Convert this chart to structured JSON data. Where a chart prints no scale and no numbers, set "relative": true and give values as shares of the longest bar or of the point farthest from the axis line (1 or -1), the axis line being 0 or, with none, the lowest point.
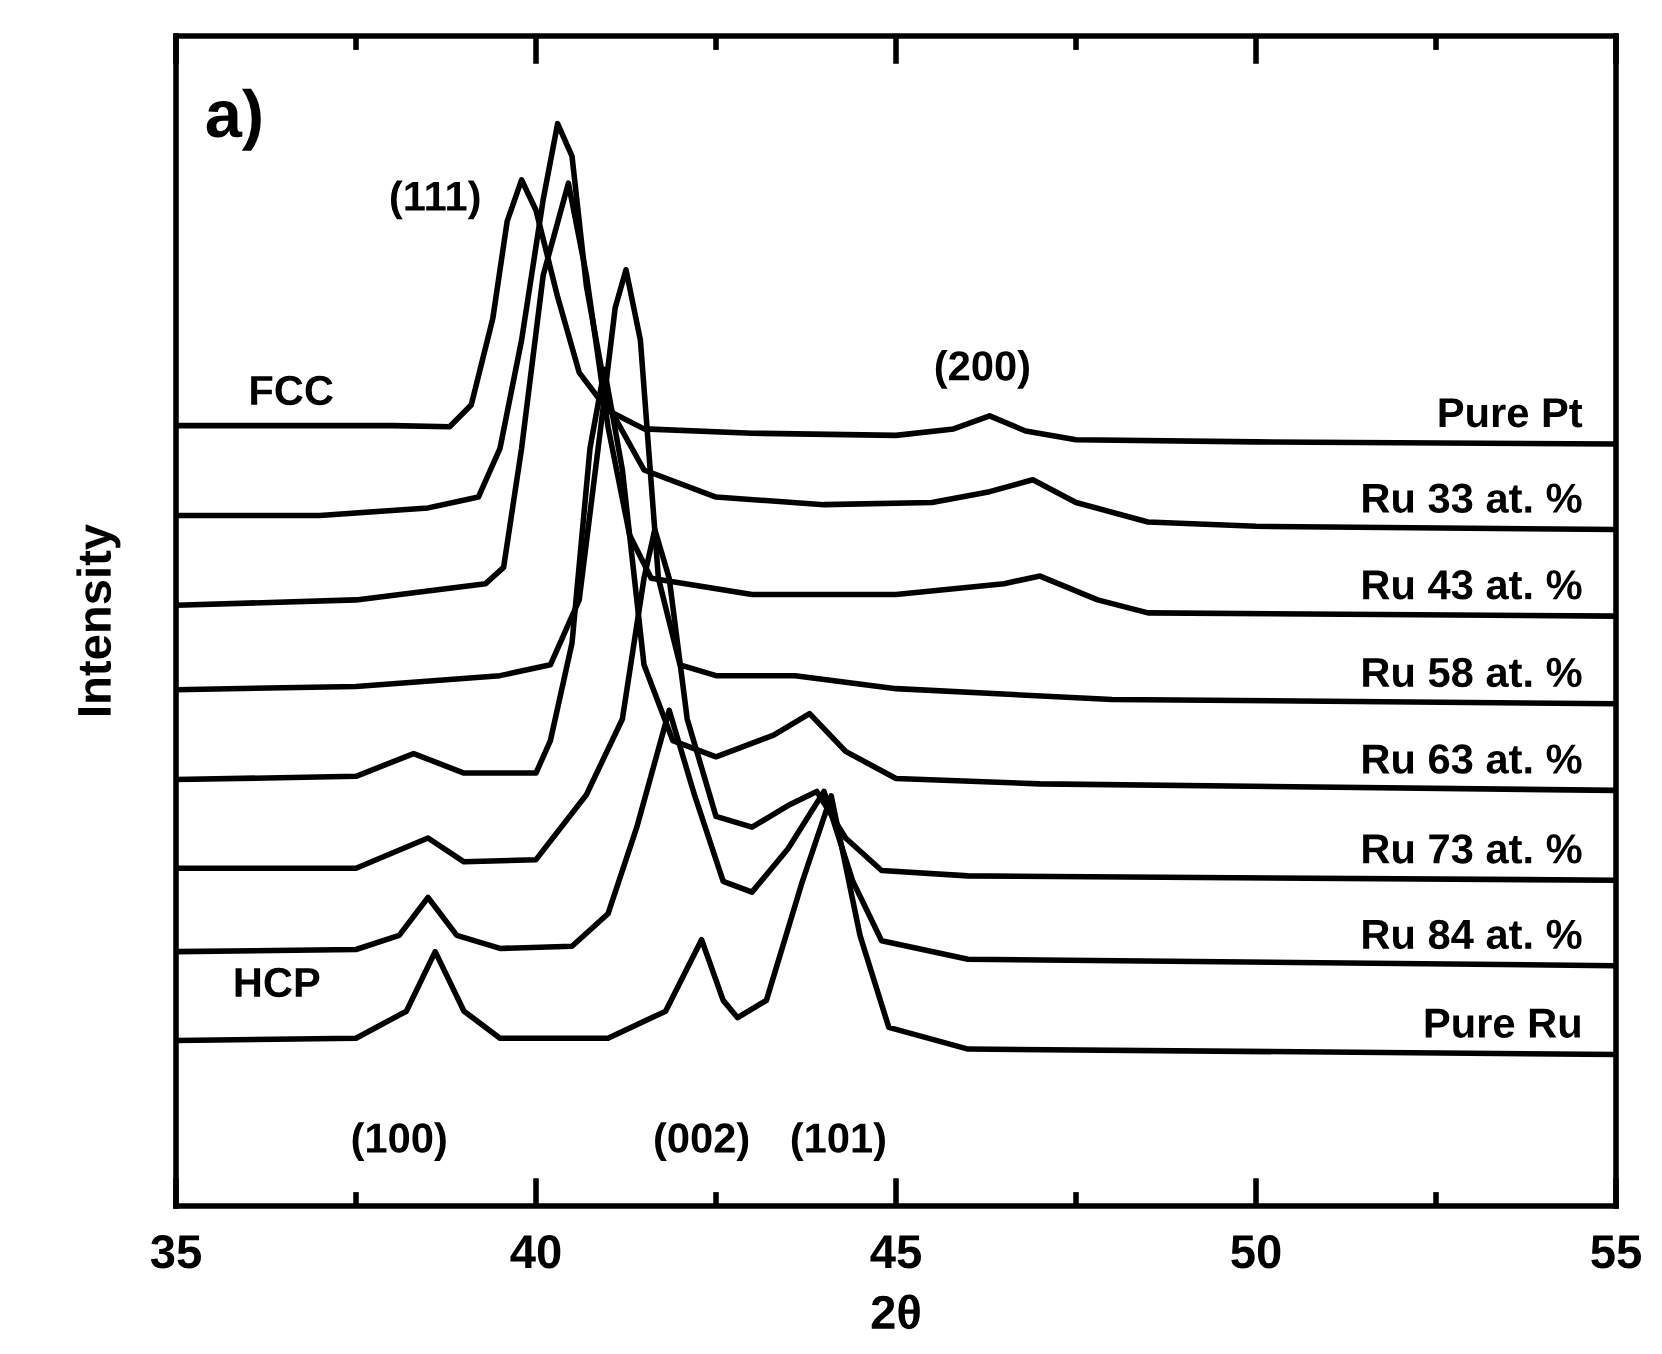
{
  "chart_data": {
    "type": "line",
    "relative": true,
    "xlabel": "2θ",
    "ylabel": "Intensity",
    "xlim": [
      35,
      55
    ],
    "xticks": [
      35,
      40,
      45,
      50,
      55
    ],
    "grid": false,
    "legend": false,
    "marker": "none",
    "line_style": "solid",
    "annotations": [
      "a)",
      "(111)",
      "(200)",
      "FCC",
      "HCP",
      "(100)",
      "(002)",
      "(101)"
    ],
    "series": [
      {
        "name": "Pure Pt",
        "color": "#000000",
        "x": [
          35,
          38,
          38.8,
          39.1,
          39.4,
          39.6,
          39.8,
          40.0,
          40.3,
          40.6,
          41.0,
          41.5,
          43,
          45,
          45.8,
          46.3,
          46.8,
          47.5,
          50,
          55
        ],
        "values": [
          0.721,
          0.721,
          0.72,
          0.74,
          0.82,
          0.91,
          0.948,
          0.92,
          0.84,
          0.77,
          0.735,
          0.718,
          0.714,
          0.712,
          0.718,
          0.73,
          0.716,
          0.708,
          0.706,
          0.704
        ]
      },
      {
        "name": "Ru 33 at. %",
        "color": "#000000",
        "x": [
          35,
          37,
          38.5,
          39.2,
          39.5,
          39.8,
          40.1,
          40.3,
          40.5,
          40.7,
          41.0,
          41.5,
          42.5,
          44,
          45.5,
          46.3,
          46.9,
          47.5,
          48.5,
          50,
          55
        ],
        "values": [
          0.638,
          0.638,
          0.645,
          0.655,
          0.7,
          0.8,
          0.93,
          1.0,
          0.97,
          0.85,
          0.74,
          0.68,
          0.655,
          0.648,
          0.65,
          0.66,
          0.671,
          0.65,
          0.632,
          0.628,
          0.625
        ]
      },
      {
        "name": "Ru 43 at. %",
        "color": "#000000",
        "x": [
          35,
          37.5,
          39.3,
          39.55,
          39.8,
          40.1,
          40.45,
          40.7,
          41.0,
          41.3,
          41.6,
          43,
          45,
          46.5,
          47.0,
          47.8,
          48.5,
          55
        ],
        "values": [
          0.555,
          0.56,
          0.575,
          0.59,
          0.7,
          0.86,
          0.945,
          0.86,
          0.72,
          0.62,
          0.58,
          0.565,
          0.565,
          0.575,
          0.582,
          0.56,
          0.548,
          0.545
        ]
      },
      {
        "name": "Ru 58 at. %",
        "color": "#000000",
        "x": [
          35,
          37.5,
          39.5,
          40.2,
          40.6,
          40.9,
          41.1,
          41.25,
          41.45,
          41.7,
          42.0,
          42.5,
          43.6,
          45,
          48,
          55
        ],
        "values": [
          0.477,
          0.48,
          0.49,
          0.5,
          0.56,
          0.72,
          0.83,
          0.865,
          0.8,
          0.58,
          0.5,
          0.49,
          0.49,
          0.478,
          0.468,
          0.464
        ]
      },
      {
        "name": "Ru 63 at. %",
        "color": "#000000",
        "x": [
          35,
          37.5,
          38.3,
          39,
          40.0,
          40.2,
          40.5,
          40.75,
          40.95,
          41.2,
          41.5,
          41.9,
          42.5,
          43.3,
          43.8,
          44.3,
          45,
          47,
          55
        ],
        "values": [
          0.394,
          0.397,
          0.418,
          0.4,
          0.4,
          0.43,
          0.52,
          0.7,
          0.773,
          0.68,
          0.5,
          0.43,
          0.415,
          0.435,
          0.455,
          0.42,
          0.395,
          0.39,
          0.384
        ]
      },
      {
        "name": "Ru 73 at. %",
        "color": "#000000",
        "x": [
          35,
          37.5,
          38.5,
          39.0,
          40.0,
          40.7,
          41.2,
          41.5,
          41.65,
          41.85,
          42.1,
          42.5,
          43.0,
          43.5,
          43.9,
          44.3,
          44.8,
          46,
          55
        ],
        "values": [
          0.312,
          0.312,
          0.34,
          0.318,
          0.32,
          0.38,
          0.45,
          0.58,
          0.625,
          0.58,
          0.45,
          0.36,
          0.35,
          0.37,
          0.383,
          0.34,
          0.31,
          0.305,
          0.301
        ]
      },
      {
        "name": "Ru 84 at. %",
        "color": "#000000",
        "x": [
          35,
          37.5,
          38.1,
          38.5,
          38.9,
          39.5,
          40.5,
          41.0,
          41.4,
          41.85,
          42.2,
          42.6,
          43.0,
          43.5,
          44.0,
          44.4,
          44.8,
          46,
          55
        ],
        "values": [
          0.235,
          0.237,
          0.25,
          0.285,
          0.25,
          0.238,
          0.24,
          0.27,
          0.35,
          0.458,
          0.38,
          0.3,
          0.29,
          0.33,
          0.383,
          0.3,
          0.245,
          0.228,
          0.222
        ]
      },
      {
        "name": "Pure Ru",
        "color": "#000000",
        "x": [
          35,
          37.5,
          38.2,
          38.6,
          39.0,
          39.5,
          41,
          41.8,
          42.3,
          42.6,
          42.8,
          43.2,
          43.7,
          44.1,
          44.5,
          44.9,
          46,
          55
        ],
        "values": [
          0.153,
          0.155,
          0.18,
          0.235,
          0.18,
          0.155,
          0.155,
          0.18,
          0.246,
          0.19,
          0.174,
          0.19,
          0.3,
          0.379,
          0.25,
          0.165,
          0.145,
          0.14
        ]
      }
    ]
  }
}
